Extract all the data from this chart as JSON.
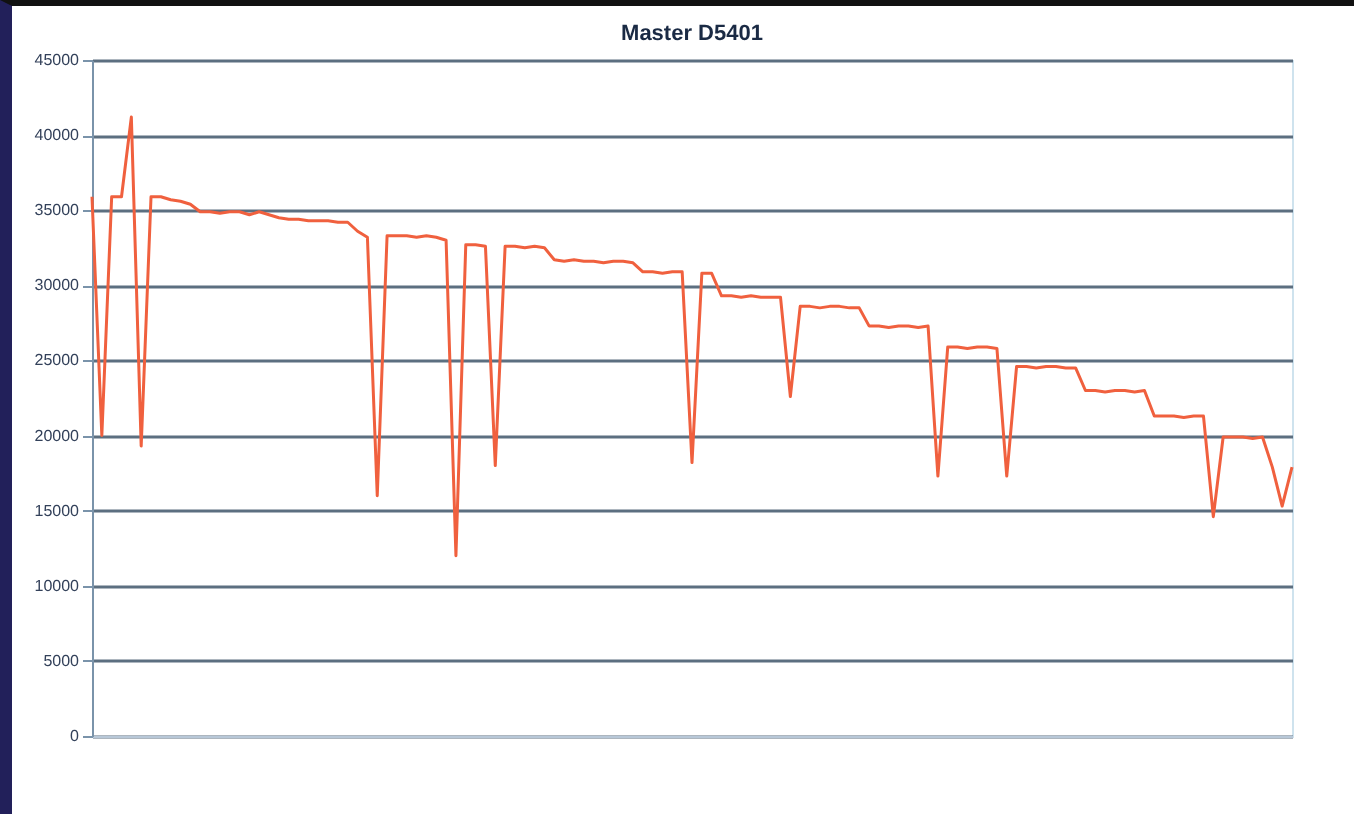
{
  "chart_data": {
    "type": "line",
    "title": "Master D5401",
    "categories": [
      null,
      null,
      null,
      null,
      null,
      null,
      null,
      null,
      null,
      null,
      null,
      null,
      null,
      null,
      null,
      null,
      null,
      null,
      null,
      null,
      null,
      null,
      null,
      null,
      null,
      null,
      null,
      null,
      null,
      null,
      null,
      null,
      null,
      null,
      null,
      null,
      null,
      null,
      null,
      null,
      null,
      null,
      null,
      null,
      null,
      null,
      null,
      null,
      null,
      null,
      null,
      null,
      null,
      null,
      null,
      null,
      null,
      null,
      null,
      null,
      null,
      null,
      null,
      null,
      null,
      null,
      null,
      null,
      null,
      null,
      null,
      null,
      null,
      null,
      null,
      null,
      null,
      null,
      null,
      null,
      null,
      null,
      null,
      null,
      null,
      null,
      null,
      null,
      null,
      null,
      null,
      null,
      null,
      null,
      null,
      null,
      null,
      null,
      null,
      null,
      null,
      null,
      null,
      null,
      null,
      null,
      null,
      null,
      null,
      null,
      null,
      null,
      null,
      null,
      null,
      null,
      null,
      null,
      null,
      null,
      null,
      null,
      null
    ],
    "series": [
      {
        "color": "#f0603e",
        "values": [
          35900,
          20000,
          35900,
          35900,
          41200,
          19300,
          35900,
          35900,
          35700,
          35600,
          35400,
          34900,
          34900,
          34800,
          34900,
          34900,
          34700,
          34900,
          34700,
          34500,
          34400,
          34400,
          34300,
          34300,
          34300,
          34200,
          34200,
          33600,
          33200,
          16000,
          33300,
          33300,
          33300,
          33200,
          33300,
          33200,
          33000,
          12000,
          32700,
          32700,
          32600,
          18000,
          32600,
          32600,
          32500,
          32600,
          32500,
          31700,
          31600,
          31700,
          31600,
          31600,
          31500,
          31600,
          31600,
          31500,
          30900,
          30900,
          30800,
          30900,
          30900,
          18200,
          30800,
          30800,
          29300,
          29300,
          29200,
          29300,
          29200,
          29200,
          29200,
          22600,
          28600,
          28600,
          28500,
          28600,
          28600,
          28500,
          28500,
          27300,
          27300,
          27200,
          27300,
          27300,
          27200,
          27300,
          17300,
          25900,
          25900,
          25800,
          25900,
          25900,
          25800,
          17300,
          24600,
          24600,
          24500,
          24600,
          24600,
          24500,
          24500,
          23000,
          23000,
          22900,
          23000,
          23000,
          22900,
          23000,
          21300,
          21300,
          21300,
          21200,
          21300,
          21300,
          14600,
          19900,
          19900,
          19900,
          19800,
          19900,
          17900,
          15300,
          17900
        ]
      }
    ],
    "ylim": [
      0,
      45000
    ],
    "yticks": [
      0,
      5000,
      10000,
      15000,
      20000,
      25000,
      30000,
      35000,
      40000,
      45000
    ],
    "grid": "y",
    "marker": "none",
    "line_style": "solid",
    "legend": false
  }
}
